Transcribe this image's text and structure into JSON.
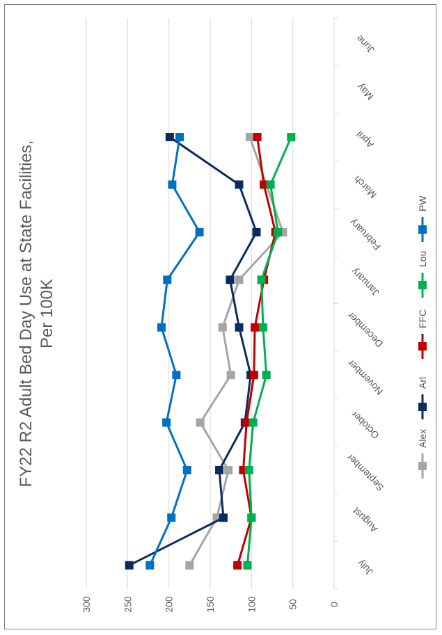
{
  "chart_data": {
    "type": "line",
    "title_lines": [
      "FY22 R2 Adult Bed Day Use at State Facilities,",
      "Per 100K"
    ],
    "categories": [
      "July",
      "August",
      "September",
      "October",
      "November",
      "December",
      "January",
      "February",
      "March",
      "April",
      "May",
      "June"
    ],
    "ylim": [
      0,
      300
    ],
    "yticks": [
      "0",
      "50",
      "100",
      "150",
      "200",
      "250",
      "300"
    ],
    "grid": true,
    "legend_position": "bottom",
    "series": [
      {
        "name": "Alex",
        "color": "#a5a5a5",
        "values": [
          175,
          142,
          128,
          162,
          125,
          135,
          115,
          62,
          null,
          102,
          null,
          null
        ]
      },
      {
        "name": "Arl",
        "color": "#0b2a5e",
        "values": [
          248,
          134,
          139,
          108,
          101,
          115,
          126,
          94,
          115,
          199,
          null,
          null
        ]
      },
      {
        "name": "FFC",
        "color": "#c00000",
        "values": [
          117,
          100,
          110,
          106,
          97,
          96,
          85,
          71,
          85,
          93,
          null,
          null
        ]
      },
      {
        "name": "Lou",
        "color": "#00b050",
        "values": [
          105,
          100,
          103,
          98,
          82,
          86,
          88,
          68,
          77,
          52,
          null,
          null
        ]
      },
      {
        "name": "PW",
        "color": "#0070c0",
        "values": [
          223,
          197,
          178,
          203,
          191,
          209,
          202,
          163,
          196,
          187,
          null,
          null
        ]
      }
    ]
  }
}
